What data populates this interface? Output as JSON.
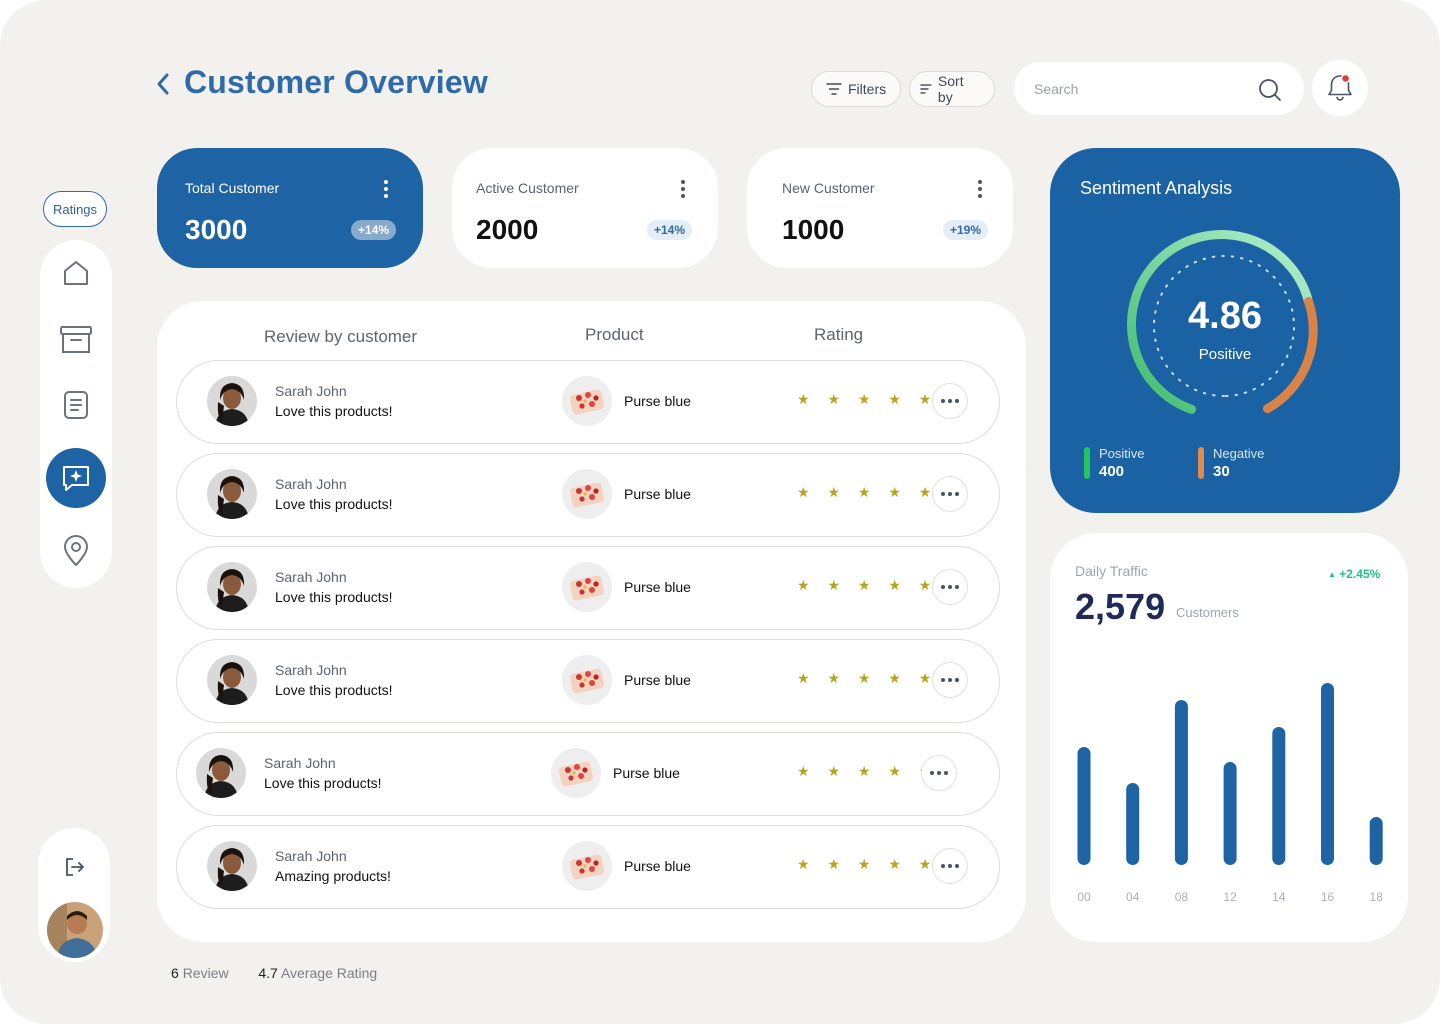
{
  "header": {
    "title": "Customer Overview",
    "filters_label": "Filters",
    "sort_label": "Sort by",
    "search_placeholder": "Search"
  },
  "sidebar": {
    "chip_label": "Ratings",
    "items": [
      {
        "icon": "home-icon",
        "active": false
      },
      {
        "icon": "archive-icon",
        "active": false
      },
      {
        "icon": "document-icon",
        "active": false
      },
      {
        "icon": "chat-sparkle-icon",
        "active": true
      },
      {
        "icon": "location-pin-icon",
        "active": false
      }
    ]
  },
  "stats": [
    {
      "label": "Total Customer",
      "value": "3000",
      "change": "+14%"
    },
    {
      "label": "Active Customer",
      "value": "2000",
      "change": "+14%"
    },
    {
      "label": "New Customer",
      "value": "1000",
      "change": "+19%"
    }
  ],
  "reviews": {
    "columns": [
      "Review by customer",
      "Product",
      "Rating"
    ],
    "rows": [
      {
        "name": "Sarah John",
        "text": "Love this products!",
        "product": "Purse blue",
        "stars": "★ ★ ★ ★ ★"
      },
      {
        "name": "Sarah John",
        "text": "Love this products!",
        "product": "Purse blue",
        "stars": "★ ★ ★ ★ ★"
      },
      {
        "name": "Sarah John",
        "text": "Love this products!",
        "product": "Purse blue",
        "stars": "★ ★ ★ ★ ★"
      },
      {
        "name": "Sarah John",
        "text": "Love this products!",
        "product": "Purse blue",
        "stars": "★ ★ ★ ★ ★"
      },
      {
        "name": "Sarah John",
        "text": "Love this products!",
        "product": "Purse blue",
        "stars": "★ ★ ★ ★ ★"
      },
      {
        "name": "Sarah John",
        "text": "Amazing products!",
        "product": "Purse blue",
        "stars": "★ ★ ★ ★ ★"
      }
    ]
  },
  "footer": {
    "review_count": "6",
    "review_label": "Review",
    "avg_rating": "4.7",
    "avg_label": "Average Rating"
  },
  "sentiment": {
    "title": "Sentiment Analysis",
    "score": "4.86",
    "label": "Positive",
    "positive_label": "Positive",
    "positive_value": "400",
    "negative_label": "Negative",
    "negative_value": "30",
    "positive_color": "#22c55e",
    "negative_color": "#e08a4c"
  },
  "traffic": {
    "title": "Daily Traffic",
    "change": "+2.45%",
    "value": "2,579",
    "unit": "Customers"
  },
  "chart_data": {
    "type": "bar",
    "categories": [
      "00",
      "04",
      "08",
      "12",
      "14",
      "16",
      "18"
    ],
    "values": [
      118,
      82,
      165,
      103,
      138,
      182,
      48
    ],
    "ylim": [
      0,
      185
    ],
    "color": "#1e63a4",
    "grid": false
  },
  "colors": {
    "accent": "#1e63a4",
    "title": "#2f6aa9",
    "background": "#f3f1ee"
  }
}
